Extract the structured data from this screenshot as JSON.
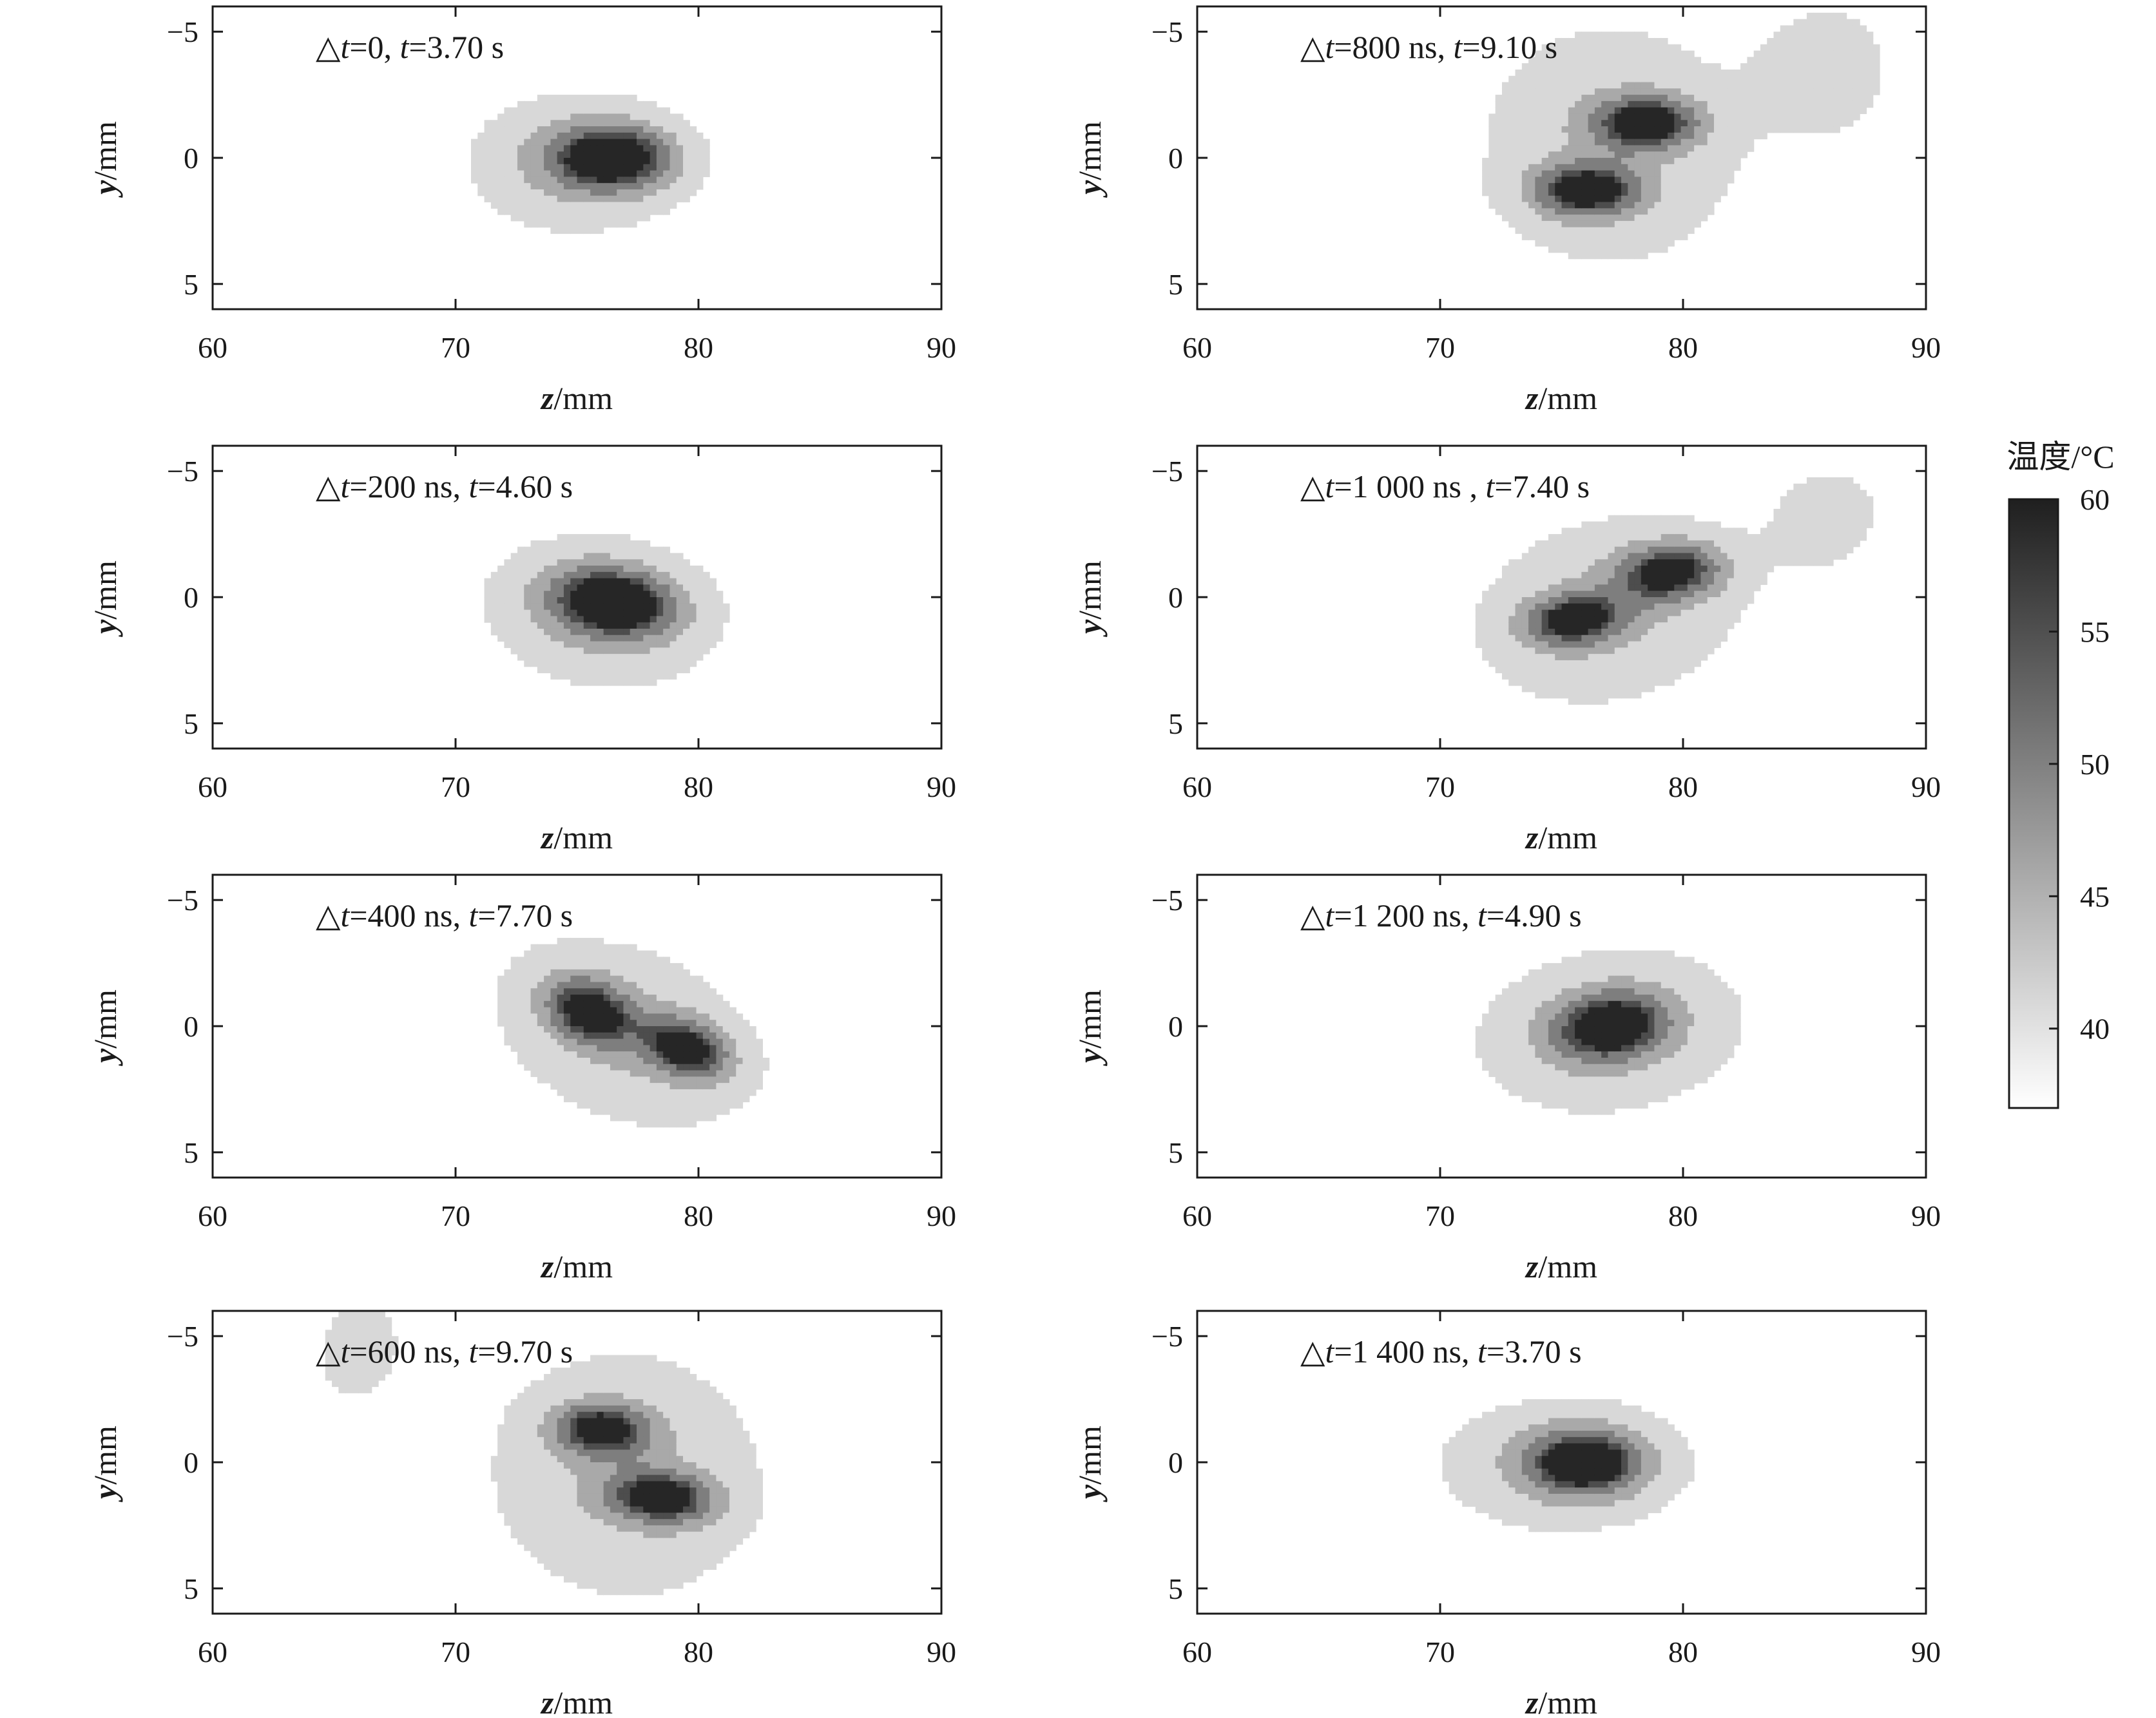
{
  "colorbar": {
    "title": "温度/°C",
    "ticks": [
      40,
      45,
      50,
      55,
      60
    ],
    "range": [
      37,
      60
    ],
    "colors": {
      "low": "#ffffff",
      "high": "#1f1f1f"
    }
  },
  "levels": [
    {
      "value": 40,
      "color": "#d8d8d8"
    },
    {
      "value": 45,
      "color": "#a9a9a9"
    },
    {
      "value": 50,
      "color": "#7e7e7e"
    },
    {
      "value": 55,
      "color": "#4d4d4d"
    },
    {
      "value": 58,
      "color": "#262626"
    }
  ],
  "chart_data": [
    {
      "type": "heatmap",
      "annotation": {
        "dt_prefix": "△",
        "dt_var": "t",
        "dt_value": "=0, ",
        "t_var": "t",
        "t_value": "=3.70 s"
      },
      "xlabel": {
        "var": "z",
        "unit": "/mm"
      },
      "ylabel": {
        "var": "y",
        "unit": "/mm"
      },
      "xlim": [
        60,
        90
      ],
      "ylim": [
        -6,
        6
      ],
      "y_inverted": true,
      "xticks": [
        60,
        70,
        80,
        90
      ],
      "yticks": [
        -5,
        0,
        5
      ],
      "cores": [
        {
          "z": 76.5,
          "y": 0.0,
          "sz": 4.8,
          "sy": 1.25,
          "amp": 23,
          "rot": 0
        }
      ],
      "halos": [
        {
          "z": 75,
          "y": 0.2,
          "sz": 8.5,
          "sy": 2.6,
          "amp": 9,
          "rot": 0
        }
      ]
    },
    {
      "type": "heatmap",
      "annotation": {
        "dt_prefix": "△",
        "dt_var": "t",
        "dt_value": "=800 ns, ",
        "t_var": "t",
        "t_value": "=9.10 s"
      },
      "xlabel": {
        "var": "z",
        "unit": "/mm"
      },
      "ylabel": {
        "var": "y",
        "unit": "/mm"
      },
      "xlim": [
        60,
        90
      ],
      "ylim": [
        -6,
        6
      ],
      "y_inverted": true,
      "xticks": [
        60,
        70,
        80,
        90
      ],
      "yticks": [
        -5,
        0,
        5
      ],
      "cores": [
        {
          "z": 78.5,
          "y": -1.4,
          "sz": 4.3,
          "sy": 1.05,
          "amp": 22,
          "rot": 0
        },
        {
          "z": 76.0,
          "y": 1.3,
          "sz": 4.3,
          "sy": 1.05,
          "amp": 22,
          "rot": 0
        }
      ],
      "halos": [
        {
          "z": 77,
          "y": -0.5,
          "sz": 11,
          "sy": 5.0,
          "amp": 7,
          "rot": 0
        },
        {
          "z": 86,
          "y": -3.5,
          "sz": 6,
          "sy": 3,
          "amp": 5,
          "rot": 0
        }
      ]
    },
    {
      "type": "heatmap",
      "annotation": {
        "dt_prefix": "△",
        "dt_var": "t",
        "dt_value": "=200 ns, ",
        "t_var": "t",
        "t_value": "=4.60 s"
      },
      "xlabel": {
        "var": "z",
        "unit": "/mm"
      },
      "ylabel": {
        "var": "y",
        "unit": "/mm"
      },
      "xlim": [
        60,
        90
      ],
      "ylim": [
        -6,
        6
      ],
      "y_inverted": true,
      "xticks": [
        60,
        70,
        80,
        90
      ],
      "yticks": [
        -5,
        0,
        5
      ],
      "cores": [
        {
          "z": 76.5,
          "y": 0.2,
          "sz": 5.0,
          "sy": 1.3,
          "amp": 23,
          "rot": 0.1
        }
      ],
      "halos": [
        {
          "z": 76,
          "y": 0.6,
          "sz": 9.0,
          "sy": 2.8,
          "amp": 9,
          "rot": 0.12
        }
      ]
    },
    {
      "type": "heatmap",
      "annotation": {
        "dt_prefix": "△",
        "dt_var": "t",
        "dt_value": "=1 000 ns , ",
        "t_var": "t",
        "t_value": "=7.40 s"
      },
      "xlabel": {
        "var": "z",
        "unit": "/mm"
      },
      "ylabel": {
        "var": "y",
        "unit": "/mm"
      },
      "xlim": [
        60,
        90
      ],
      "ylim": [
        -6,
        6
      ],
      "y_inverted": true,
      "xticks": [
        60,
        70,
        80,
        90
      ],
      "yticks": [
        -5,
        0,
        5
      ],
      "cores": [
        {
          "z": 79.5,
          "y": -1.0,
          "sz": 4.2,
          "sy": 1.1,
          "amp": 21,
          "rot": -0.1
        },
        {
          "z": 75.5,
          "y": 0.9,
          "sz": 4.0,
          "sy": 1.0,
          "amp": 20,
          "rot": -0.1
        }
      ],
      "halos": [
        {
          "z": 77,
          "y": 0.5,
          "sz": 11,
          "sy": 3.6,
          "amp": 8,
          "rot": -0.22
        },
        {
          "z": 86,
          "y": -3.2,
          "sz": 5,
          "sy": 2.2,
          "amp": 5,
          "rot": -0.3
        }
      ]
    },
    {
      "type": "heatmap",
      "annotation": {
        "dt_prefix": "△",
        "dt_var": "t",
        "dt_value": "=400 ns, ",
        "t_var": "t",
        "t_value": "=7.70 s"
      },
      "xlabel": {
        "var": "z",
        "unit": "/mm"
      },
      "ylabel": {
        "var": "y",
        "unit": "/mm"
      },
      "xlim": [
        60,
        90
      ],
      "ylim": [
        -6,
        6
      ],
      "y_inverted": true,
      "xticks": [
        60,
        70,
        80,
        90
      ],
      "yticks": [
        -5,
        0,
        5
      ],
      "cores": [
        {
          "z": 75.5,
          "y": -0.6,
          "sz": 3.6,
          "sy": 1.2,
          "amp": 21,
          "rot": 0.35
        },
        {
          "z": 79.5,
          "y": 0.9,
          "sz": 3.6,
          "sy": 1.1,
          "amp": 21,
          "rot": 0.3
        }
      ],
      "halos": [
        {
          "z": 77,
          "y": 0.3,
          "sz": 11,
          "sy": 3.4,
          "amp": 8,
          "rot": 0.35
        }
      ]
    },
    {
      "type": "heatmap",
      "annotation": {
        "dt_prefix": "△",
        "dt_var": "t",
        "dt_value": "=1 200 ns, ",
        "t_var": "t",
        "t_value": "=4.90 s"
      },
      "xlabel": {
        "var": "z",
        "unit": "/mm"
      },
      "ylabel": {
        "var": "y",
        "unit": "/mm"
      },
      "xlim": [
        60,
        90
      ],
      "ylim": [
        -6,
        6
      ],
      "y_inverted": true,
      "xticks": [
        60,
        70,
        80,
        90
      ],
      "yticks": [
        -5,
        0,
        5
      ],
      "cores": [
        {
          "z": 77.0,
          "y": 0.0,
          "sz": 4.6,
          "sy": 1.3,
          "amp": 22,
          "rot": -0.12
        }
      ],
      "halos": [
        {
          "z": 77,
          "y": 0.2,
          "sz": 11,
          "sy": 3.2,
          "amp": 8,
          "rot": -0.12
        }
      ]
    },
    {
      "type": "heatmap",
      "annotation": {
        "dt_prefix": "△",
        "dt_var": "t",
        "dt_value": "=600 ns, ",
        "t_var": "t",
        "t_value": "=9.70 s"
      },
      "xlabel": {
        "var": "z",
        "unit": "/mm"
      },
      "ylabel": {
        "var": "y",
        "unit": "/mm"
      },
      "xlim": [
        60,
        90
      ],
      "ylim": [
        -6,
        6
      ],
      "y_inverted": true,
      "xticks": [
        60,
        70,
        80,
        90
      ],
      "yticks": [
        -5,
        0,
        5
      ],
      "cores": [
        {
          "z": 76.0,
          "y": -1.3,
          "sz": 3.8,
          "sy": 1.0,
          "amp": 21,
          "rot": 0.05
        },
        {
          "z": 78.5,
          "y": 1.4,
          "sz": 4.2,
          "sy": 1.0,
          "amp": 21,
          "rot": 0.08
        }
      ],
      "halos": [
        {
          "z": 77,
          "y": 0.5,
          "sz": 11,
          "sy": 4.8,
          "amp": 8,
          "rot": 0.12
        },
        {
          "z": 66,
          "y": -4.5,
          "sz": 4,
          "sy": 2.5,
          "amp": 5,
          "rot": 0.3
        }
      ]
    },
    {
      "type": "heatmap",
      "annotation": {
        "dt_prefix": "△",
        "dt_var": "t",
        "dt_value": "=1 400 ns, ",
        "t_var": "t",
        "t_value": "=3.70 s"
      },
      "xlabel": {
        "var": "z",
        "unit": "/mm"
      },
      "ylabel": {
        "var": "y",
        "unit": "/mm"
      },
      "xlim": [
        60,
        90
      ],
      "ylim": [
        -6,
        6
      ],
      "y_inverted": true,
      "xticks": [
        60,
        70,
        80,
        90
      ],
      "yticks": [
        -5,
        0,
        5
      ],
      "cores": [
        {
          "z": 76.0,
          "y": 0.0,
          "sz": 4.6,
          "sy": 1.25,
          "amp": 23,
          "rot": 0
        }
      ],
      "halos": [
        {
          "z": 75,
          "y": 0.1,
          "sz": 10,
          "sy": 2.6,
          "amp": 8,
          "rot": 0
        }
      ]
    }
  ]
}
